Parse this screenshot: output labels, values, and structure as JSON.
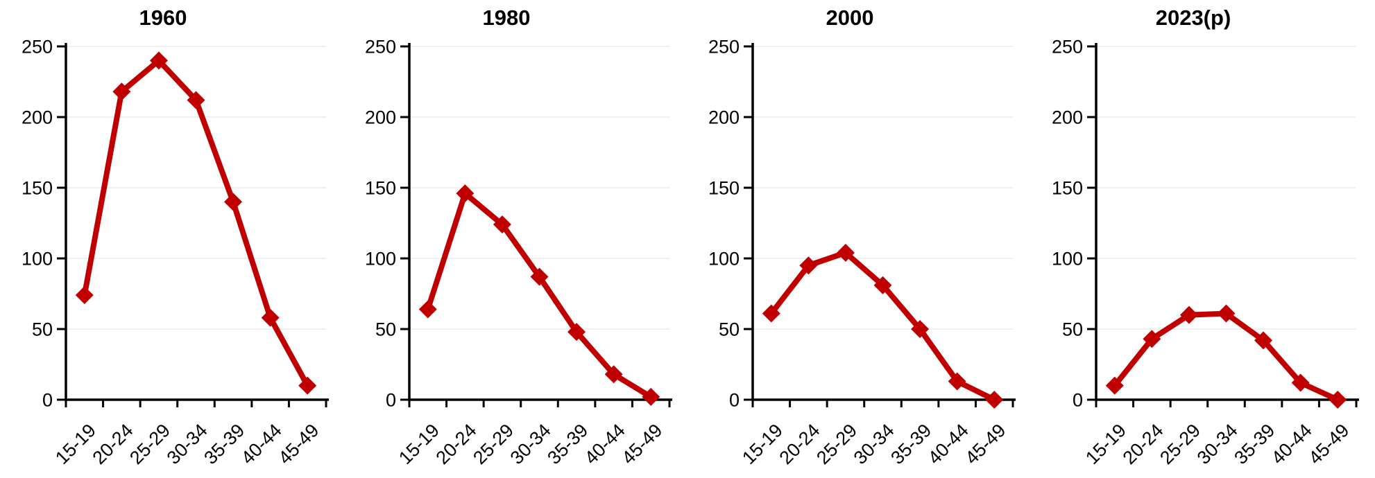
{
  "page": {
    "background_color": "#FFFFFF",
    "description": "Four small-multiple line charts of rates by female age group for 1960, 1980, 2000 and 2023(p)"
  },
  "style": {
    "line_color": "#C00000",
    "grid_color": "#EFEFEF",
    "axis_color": "#000000",
    "text_color": "#000000"
  },
  "chart_data": [
    {
      "type": "line",
      "title": "1960",
      "categories": [
        "15-19",
        "20-24",
        "25-29",
        "30-34",
        "35-39",
        "40-44",
        "45-49"
      ],
      "values": [
        74,
        218,
        240,
        212,
        140,
        58,
        10
      ],
      "xlabel": "",
      "ylabel": "",
      "ylim": [
        0,
        250
      ],
      "yticks": [
        0,
        50,
        100,
        150,
        200,
        250
      ],
      "grid": true,
      "legend": "none",
      "marker": "diamond",
      "line_color": "#C00000",
      "xtick_rotation_deg": -45
    },
    {
      "type": "line",
      "title": "1980",
      "categories": [
        "15-19",
        "20-24",
        "25-29",
        "30-34",
        "35-39",
        "40-44",
        "45-49"
      ],
      "values": [
        64,
        146,
        124,
        87,
        48,
        18,
        2
      ],
      "xlabel": "",
      "ylabel": "",
      "ylim": [
        0,
        250
      ],
      "yticks": [
        0,
        50,
        100,
        150,
        200,
        250
      ],
      "grid": true,
      "legend": "none",
      "marker": "diamond",
      "line_color": "#C00000",
      "xtick_rotation_deg": -45
    },
    {
      "type": "line",
      "title": "2000",
      "categories": [
        "15-19",
        "20-24",
        "25-29",
        "30-34",
        "35-39",
        "40-44",
        "45-49"
      ],
      "values": [
        61,
        95,
        104,
        81,
        50,
        13,
        0
      ],
      "xlabel": "",
      "ylabel": "",
      "ylim": [
        0,
        250
      ],
      "yticks": [
        0,
        50,
        100,
        150,
        200,
        250
      ],
      "grid": true,
      "legend": "none",
      "marker": "diamond",
      "line_color": "#C00000",
      "xtick_rotation_deg": -45
    },
    {
      "type": "line",
      "title": "2023(p)",
      "categories": [
        "15-19",
        "20-24",
        "25-29",
        "30-34",
        "35-39",
        "40-44",
        "45-49"
      ],
      "values": [
        10,
        43,
        60,
        61,
        42,
        12,
        0
      ],
      "xlabel": "",
      "ylabel": "",
      "ylim": [
        0,
        250
      ],
      "yticks": [
        0,
        50,
        100,
        150,
        200,
        250
      ],
      "grid": true,
      "legend": "none",
      "marker": "diamond",
      "line_color": "#C00000",
      "xtick_rotation_deg": -45
    }
  ]
}
